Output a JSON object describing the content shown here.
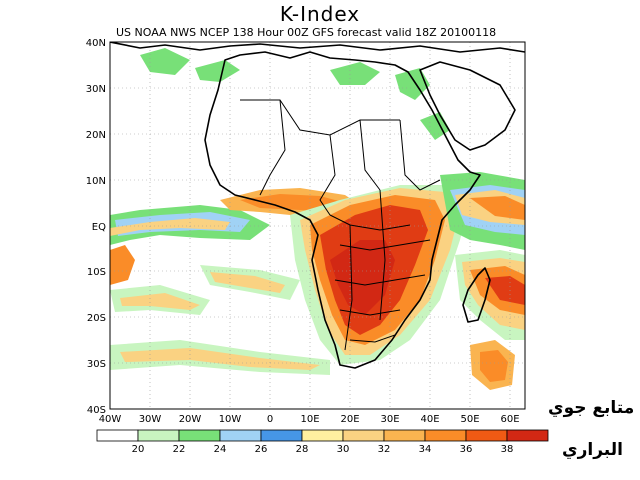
{
  "title": "K-Index",
  "subtitle": "US NOAA NWS NCEP 138 Hour 00Z GFS forecast valid 18Z 20100118",
  "lat_labels": [
    "40N",
    "30N",
    "20N",
    "10N",
    "EQ",
    "10S",
    "20S",
    "30S",
    "40S"
  ],
  "lon_labels": [
    "40W",
    "30W",
    "20W",
    "10W",
    "0",
    "10E",
    "20E",
    "30E",
    "40E",
    "50E",
    "60E"
  ],
  "colorbar": {
    "colors": [
      "#ffffff",
      "#c8f5c0",
      "#78e078",
      "#a0d2f5",
      "#4696e6",
      "#fff0a0",
      "#fad282",
      "#fab450",
      "#fa8c28",
      "#f05a14",
      "#d22814"
    ],
    "labels": [
      "20",
      "22",
      "24",
      "26",
      "28",
      "30",
      "32",
      "34",
      "36",
      "38"
    ]
  },
  "logo": {
    "line1": "متابع جوي",
    "line2": "البراري"
  }
}
